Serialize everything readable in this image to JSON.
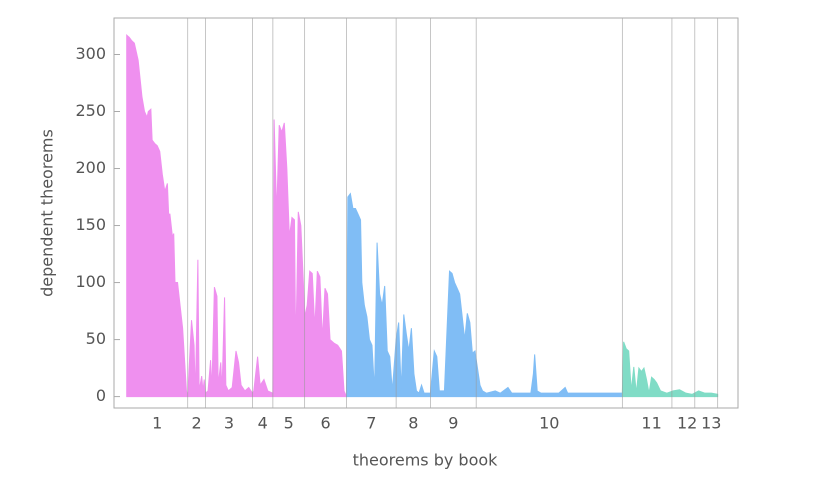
{
  "chart_data": {
    "type": "area",
    "xlabel": "theorems by book",
    "ylabel": "dependent theorems",
    "xlim": [
      -10,
      481
    ],
    "ylim": [
      -10,
      332
    ],
    "yticks": [
      0,
      50,
      100,
      150,
      200,
      250,
      300
    ],
    "xticks": [
      {
        "value": 24,
        "label": "1"
      },
      {
        "value": 55,
        "label": "2"
      },
      {
        "value": 80.5,
        "label": "3"
      },
      {
        "value": 107,
        "label": "4"
      },
      {
        "value": 127.5,
        "label": "5"
      },
      {
        "value": 156.5,
        "label": "6"
      },
      {
        "value": 192.5,
        "label": "7"
      },
      {
        "value": 225.5,
        "label": "8"
      },
      {
        "value": 257,
        "label": "9"
      },
      {
        "value": 332.5,
        "label": "10"
      },
      {
        "value": 413,
        "label": "11"
      },
      {
        "value": 441,
        "label": "12"
      },
      {
        "value": 460,
        "label": "13"
      }
    ],
    "dividers": [
      48,
      62,
      99,
      115,
      140,
      173,
      212,
      239,
      275,
      390,
      429,
      447,
      465
    ],
    "series": [
      {
        "color": "#ef90ef",
        "x": [
          0,
          2,
          4,
          6,
          9,
          12,
          14,
          16,
          17,
          19,
          20,
          22,
          24,
          26,
          28,
          30,
          32,
          33,
          34,
          36,
          37,
          38,
          40,
          42,
          44,
          47,
          48,
          51,
          53,
          54,
          56,
          57,
          59,
          60,
          61,
          62,
          64,
          66,
          67,
          69,
          71,
          72,
          74,
          75,
          77,
          78,
          80,
          83,
          86,
          88,
          90,
          93,
          96,
          99,
          100,
          103,
          105,
          108,
          111,
          115,
          116,
          118,
          120,
          122,
          124,
          126,
          128,
          130,
          132,
          133,
          135,
          137,
          139,
          140,
          142,
          144,
          146,
          148,
          150,
          152,
          154,
          156,
          158,
          160,
          163,
          166,
          169,
          171,
          173
        ],
        "values": [
          317,
          315,
          312,
          310,
          295,
          263,
          250,
          245,
          250,
          252,
          225,
          222,
          220,
          215,
          195,
          180,
          187,
          160,
          160,
          140,
          143,
          100,
          100,
          80,
          60,
          5,
          0,
          67,
          45,
          0,
          120,
          5,
          18,
          5,
          15,
          3,
          5,
          32,
          5,
          96,
          88,
          10,
          30,
          5,
          87,
          10,
          5,
          8,
          40,
          30,
          10,
          5,
          8,
          3,
          5,
          35,
          10,
          15,
          5,
          3,
          243,
          160,
          238,
          232,
          240,
          200,
          140,
          157,
          155,
          40,
          162,
          150,
          100,
          70,
          80,
          110,
          108,
          60,
          110,
          105,
          50,
          95,
          90,
          50,
          47,
          45,
          40,
          5,
          0
        ]
      },
      {
        "color": "#80bdf5",
        "x": [
          173,
          174,
          176,
          178,
          180,
          182,
          184,
          185,
          187,
          189,
          191,
          193,
          195,
          197,
          199,
          201,
          203,
          205,
          207,
          209,
          212,
          214,
          216,
          218,
          220,
          222,
          224,
          226,
          228,
          230,
          232,
          234,
          239,
          242,
          244,
          246,
          250,
          254,
          256,
          258,
          260,
          262,
          264,
          266,
          268,
          270,
          272,
          274,
          276,
          278,
          280,
          283,
          290,
          294,
          300,
          303,
          310,
          318,
          320,
          321,
          323,
          326,
          340,
          345,
          347,
          360,
          370,
          390
        ],
        "values": [
          0,
          175,
          178,
          165,
          165,
          160,
          155,
          100,
          80,
          70,
          50,
          45,
          5,
          135,
          90,
          80,
          97,
          40,
          35,
          5,
          50,
          65,
          5,
          72,
          55,
          40,
          60,
          20,
          5,
          3,
          10,
          3,
          3,
          40,
          35,
          5,
          5,
          110,
          108,
          100,
          95,
          90,
          70,
          50,
          73,
          65,
          38,
          40,
          25,
          10,
          5,
          3,
          5,
          3,
          8,
          3,
          3,
          3,
          20,
          37,
          5,
          3,
          3,
          8,
          3,
          3,
          3,
          3
        ]
      },
      {
        "color": "#80dcc6",
        "x": [
          390,
          391,
          393,
          395,
          397,
          399,
          401,
          403,
          405,
          407,
          409,
          411,
          413,
          415,
          417,
          420,
          425,
          430,
          435,
          440,
          445,
          450,
          455,
          460,
          465
        ],
        "values": [
          3,
          48,
          42,
          40,
          5,
          26,
          3,
          25,
          22,
          25,
          15,
          3,
          17,
          15,
          12,
          5,
          3,
          5,
          6,
          3,
          2,
          5,
          3,
          3,
          2
        ]
      }
    ]
  }
}
